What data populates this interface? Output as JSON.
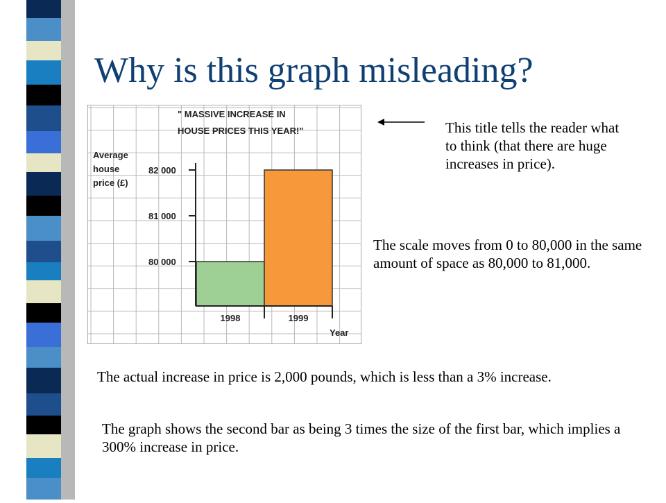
{
  "slide": {
    "title": "Why is this graph misleading?",
    "title_color": "#0f3f73"
  },
  "annotations": {
    "title_note": "This title tells the reader what to think (that there are huge increases in price).",
    "scale_note": "The scale moves from 0 to 80,000 in the same amount of space as 80,000 to 81,000.",
    "actual_increase_note": "The actual increase in price is 2,000 pounds, which is less than a 3% increase.",
    "bar_size_note": "The graph shows the second bar as being 3 times the size of the first bar, which implies a 300% increase in price."
  },
  "chart_data": {
    "type": "bar",
    "title_lines": [
      "\" MASSIVE INCREASE  IN",
      "HOUSE PRICES THIS YEAR!\""
    ],
    "ylabel_lines": [
      "Average",
      "house",
      "price (£)"
    ],
    "xlabel": "Year",
    "categories": [
      "1998",
      "1999"
    ],
    "values": [
      80000,
      82000
    ],
    "y_ticks": [
      "80 000",
      "81 000",
      "82 000"
    ],
    "y_tick_values": [
      80000,
      81000,
      82000
    ],
    "bar_colors": [
      "#9ecf94",
      "#f7983a"
    ],
    "grid": true
  },
  "decor": {
    "strip_colors": [
      "#000000",
      "#4a8fc7",
      "#e6e6c4",
      "#1f4e8c",
      "#0a2a55",
      "#1a7fc0",
      "#3a6fd8"
    ]
  }
}
